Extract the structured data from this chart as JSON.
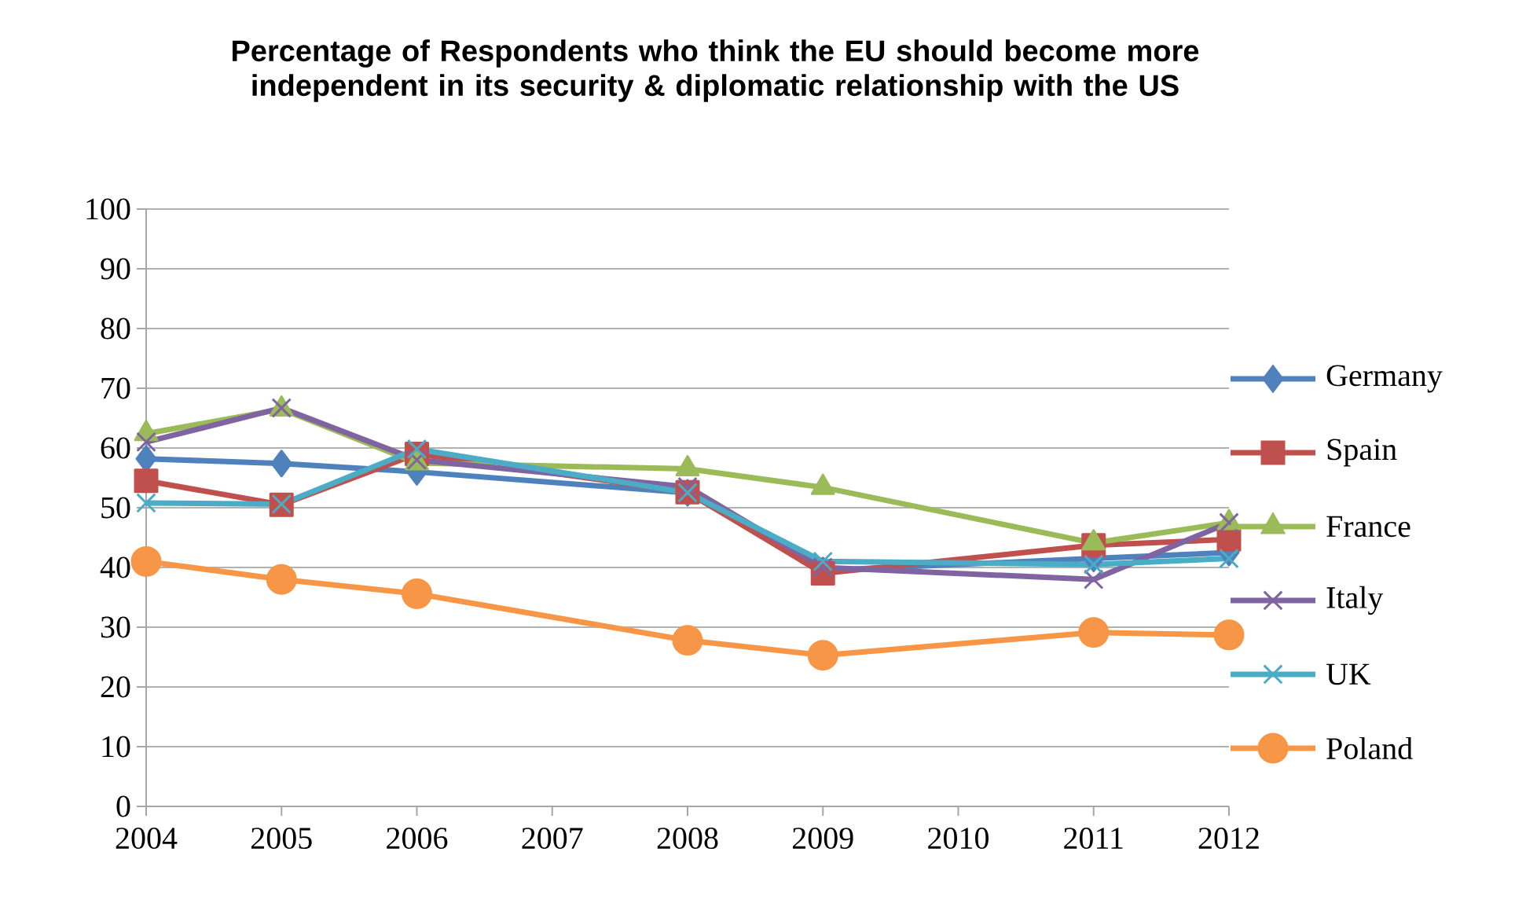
{
  "chart_data": {
    "type": "line",
    "title": "Percentage of Respondents who think the EU should become more independent in its security & diplomatic relationship with the US",
    "x": [
      2004,
      2005,
      2006,
      2008,
      2009,
      2011,
      2012
    ],
    "xlim": [
      2004,
      2012
    ],
    "xticks": [
      2004,
      2005,
      2006,
      2007,
      2008,
      2009,
      2010,
      2011,
      2012
    ],
    "ylim": [
      0,
      100
    ],
    "yticks": [
      0,
      10,
      20,
      30,
      40,
      50,
      60,
      70,
      80,
      90,
      100
    ],
    "grid": "y",
    "legend": "right",
    "line_style": "solid",
    "series": [
      {
        "name": "Germany",
        "color": "#4f81bd",
        "marker": "diamond",
        "values": [
          58.2,
          57.4,
          56,
          52.5,
          39.5,
          41.5,
          42.5
        ]
      },
      {
        "name": "Spain",
        "color": "#c0504d",
        "marker": "square",
        "values": [
          54.5,
          50.5,
          59,
          52.6,
          39,
          43.7,
          44.7
        ]
      },
      {
        "name": "France",
        "color": "#9bbb59",
        "marker": "triangle",
        "values": [
          62.4,
          66.5,
          57.5,
          56.5,
          53.4,
          44.1,
          47.5
        ]
      },
      {
        "name": "Italy",
        "color": "#8064a2",
        "marker": "cross",
        "values": [
          61,
          66.7,
          58,
          53.5,
          40,
          38,
          47.5
        ]
      },
      {
        "name": "UK",
        "color": "#4bacc6",
        "marker": "cross",
        "values": [
          50.8,
          50.6,
          59.8,
          52.5,
          41,
          40.5,
          41.5
        ]
      },
      {
        "name": "Poland",
        "color": "#f79646",
        "marker": "circle",
        "values": [
          41,
          38,
          35.6,
          27.8,
          25.3,
          29.1,
          28.7
        ]
      }
    ]
  }
}
